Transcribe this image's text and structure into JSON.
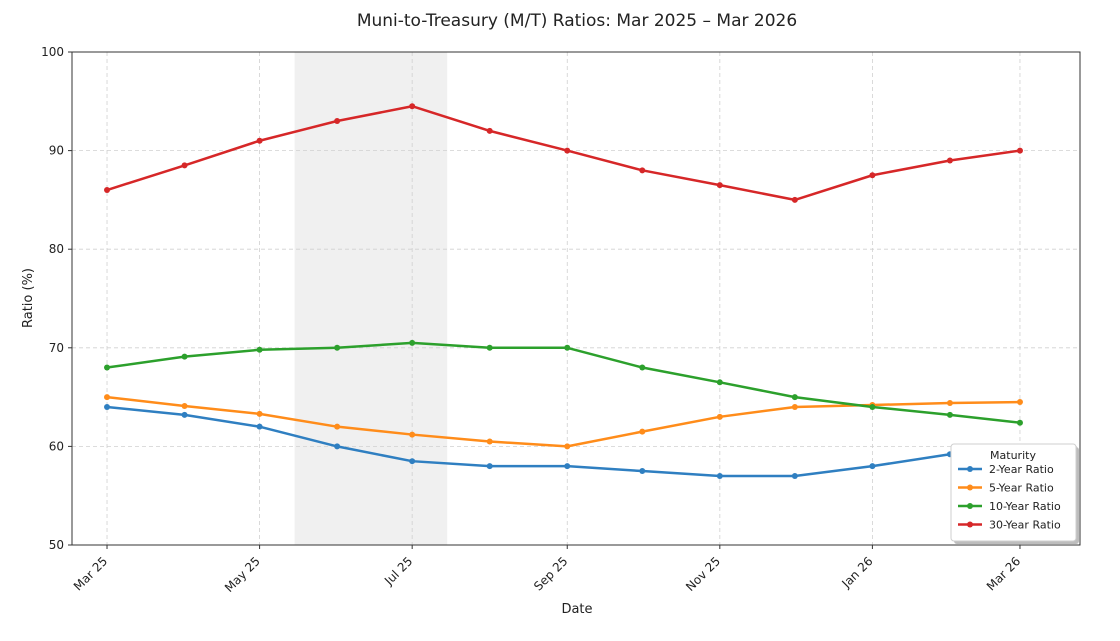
{
  "chart_data": {
    "type": "line",
    "title": "Muni-to-Treasury (M/T) Ratios: Mar 2025 – Mar 2026",
    "xlabel": "Date",
    "ylabel": "Ratio (%)",
    "ylim": [
      50,
      100
    ],
    "yticks": [
      50,
      60,
      70,
      80,
      90,
      100
    ],
    "x": [
      "2025-03-01",
      "2025-04-01",
      "2025-05-01",
      "2025-06-01",
      "2025-07-01",
      "2025-08-01",
      "2025-09-01",
      "2025-10-01",
      "2025-11-01",
      "2025-12-01",
      "2026-01-01",
      "2026-02-01",
      "2026-03-01"
    ],
    "xticks": [
      {
        "date": "2025-03-01",
        "label": "Mar 25"
      },
      {
        "date": "2025-05-01",
        "label": "May 25"
      },
      {
        "date": "2025-07-01",
        "label": "Jul 25"
      },
      {
        "date": "2025-09-01",
        "label": "Sep 25"
      },
      {
        "date": "2025-11-01",
        "label": "Nov 25"
      },
      {
        "date": "2026-01-01",
        "label": "Jan 26"
      },
      {
        "date": "2026-03-01",
        "label": "Mar 26"
      }
    ],
    "shaded_region": {
      "from": "2025-05-15",
      "to": "2025-07-15",
      "color": "#e6e6e6"
    },
    "grid": true,
    "legend": {
      "title": "Maturity",
      "placement": "bottom-right"
    },
    "series": [
      {
        "name": "2-Year Ratio",
        "color": "#2f7fc1",
        "values": [
          64,
          63.2,
          62,
          60,
          58.5,
          58,
          58,
          57.5,
          57,
          57,
          58,
          59.2,
          59.5
        ]
      },
      {
        "name": "5-Year Ratio",
        "color": "#ff8c1a",
        "values": [
          65,
          64.1,
          63.3,
          62,
          61.2,
          60.5,
          60,
          61.5,
          63,
          64,
          64.2,
          64.4,
          64.5
        ]
      },
      {
        "name": "10-Year Ratio",
        "color": "#2ca02c",
        "values": [
          68,
          69.1,
          69.8,
          70,
          70.5,
          70,
          70,
          68,
          66.5,
          65,
          64,
          63.2,
          62.4
        ]
      },
      {
        "name": "30-Year Ratio",
        "color": "#d62728",
        "values": [
          86,
          88.5,
          91,
          93,
          94.5,
          92,
          90,
          88,
          86.5,
          85,
          87.5,
          89,
          90
        ]
      }
    ]
  }
}
